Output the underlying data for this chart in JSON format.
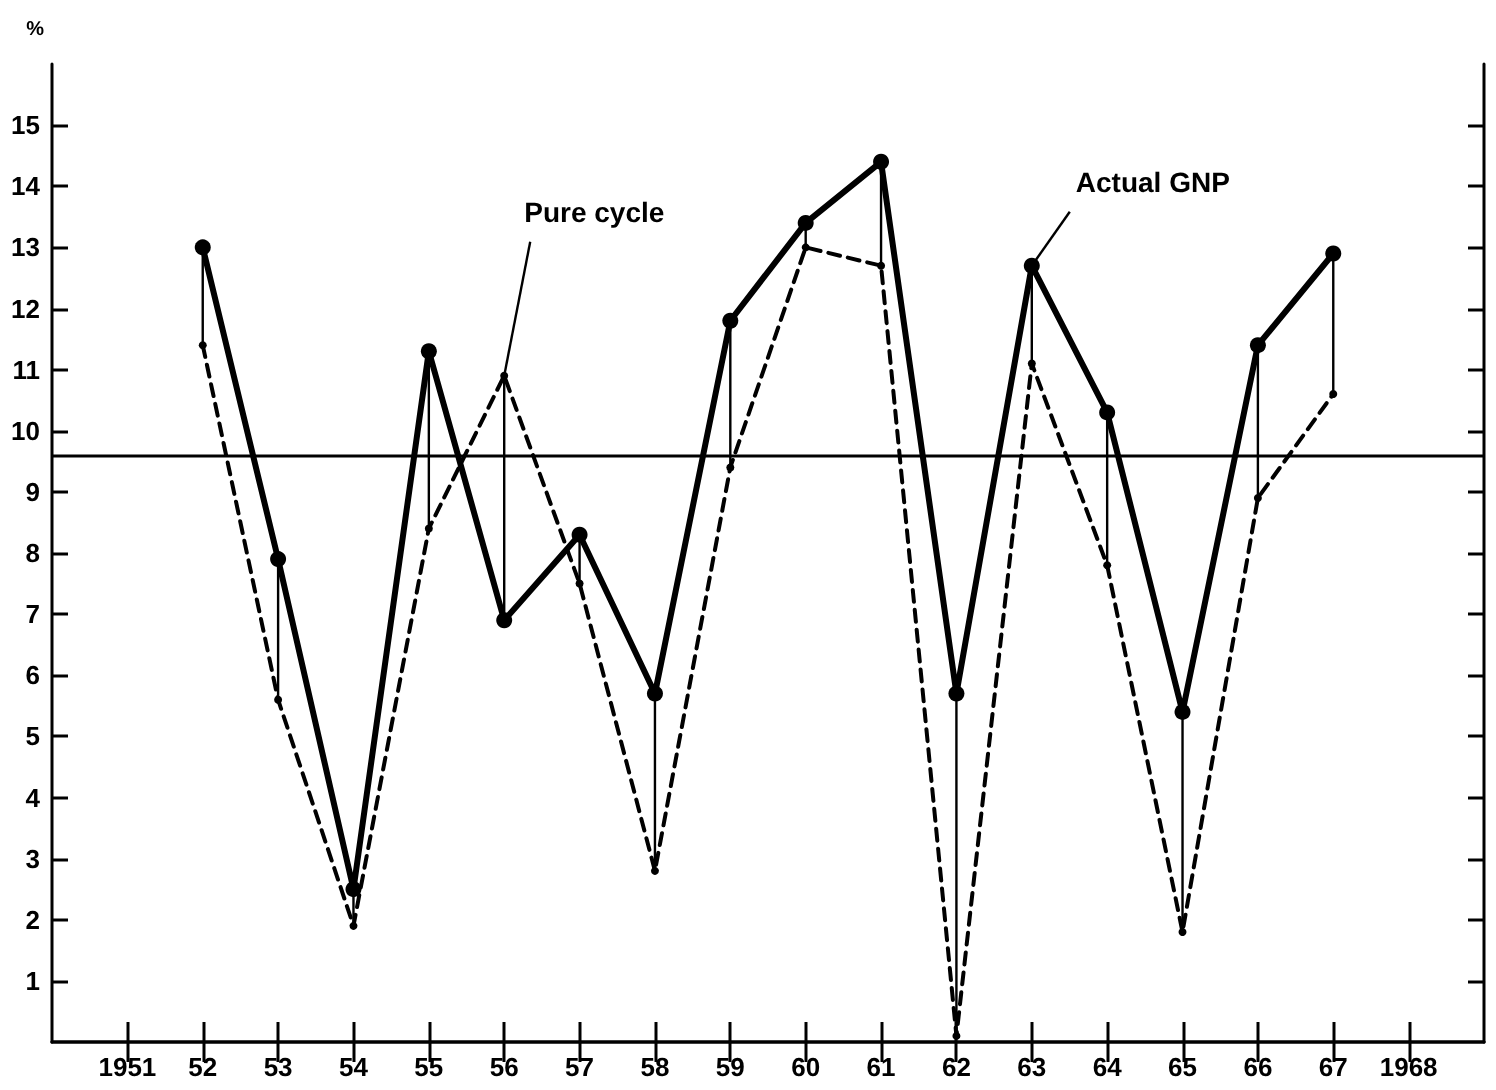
{
  "chart_data": {
    "type": "line",
    "ylabel": "%",
    "x": [
      1952,
      1953,
      1954,
      1955,
      1956,
      1957,
      1958,
      1959,
      1960,
      1961,
      1962,
      1963,
      1964,
      1965,
      1966,
      1967
    ],
    "xlim": [
      1950,
      1969
    ],
    "xticks": [
      {
        "value": 1951,
        "label": "1951"
      },
      {
        "value": 1952,
        "label": "52"
      },
      {
        "value": 1953,
        "label": "53"
      },
      {
        "value": 1954,
        "label": "54"
      },
      {
        "value": 1955,
        "label": "55"
      },
      {
        "value": 1956,
        "label": "56"
      },
      {
        "value": 1957,
        "label": "57"
      },
      {
        "value": 1958,
        "label": "58"
      },
      {
        "value": 1959,
        "label": "59"
      },
      {
        "value": 1960,
        "label": "60"
      },
      {
        "value": 1961,
        "label": "61"
      },
      {
        "value": 1962,
        "label": "62"
      },
      {
        "value": 1963,
        "label": "63"
      },
      {
        "value": 1964,
        "label": "64"
      },
      {
        "value": 1965,
        "label": "65"
      },
      {
        "value": 1966,
        "label": "66"
      },
      {
        "value": 1967,
        "label": "67"
      },
      {
        "value": 1968,
        "label": "1968"
      }
    ],
    "ylim": [
      0,
      16
    ],
    "yticks": [
      1,
      2,
      3,
      4,
      5,
      6,
      7,
      8,
      9,
      10,
      11,
      12,
      13,
      14,
      15
    ],
    "series": [
      {
        "color": "#000000",
        "line_style": "dashed",
        "marker": "circle",
        "values": [
          11.4,
          5.6,
          1.9,
          8.4,
          10.9,
          7.5,
          2.8,
          9.4,
          13.0,
          12.7,
          0.1,
          11.1,
          7.8,
          1.8,
          8.9,
          10.6
        ]
      },
      {
        "color": "#000000",
        "line_style": "solid",
        "marker": "circle",
        "values": [
          13.0,
          7.9,
          2.5,
          11.3,
          6.9,
          8.3,
          5.7,
          11.8,
          13.4,
          14.4,
          5.7,
          12.7,
          10.3,
          5.4,
          11.4,
          12.9
        ],
        "errors": [
          [
            11.4,
            13.0
          ],
          [
            5.6,
            7.9
          ],
          [
            1.9,
            2.5
          ],
          [
            8.4,
            11.3
          ],
          [
            6.9,
            10.9
          ],
          [
            7.5,
            8.3
          ],
          [
            2.8,
            5.7
          ],
          [
            9.4,
            11.8
          ],
          [
            13.0,
            13.4
          ],
          [
            12.7,
            14.4
          ],
          [
            0.1,
            5.7
          ],
          [
            11.1,
            12.7
          ],
          [
            7.8,
            10.3
          ],
          [
            1.8,
            5.4
          ],
          [
            8.9,
            11.4
          ],
          [
            10.6,
            12.9
          ]
        ]
      }
    ],
    "ref_lines": [
      {
        "axis": "y",
        "value": 9.6,
        "color": "#000000",
        "line_style": "solid"
      }
    ],
    "annotations": [
      {
        "text": "Pure cycle",
        "x": 1956,
        "y": 10.9
      },
      {
        "text": "Actual GNP",
        "x": 1963,
        "y": 12.7
      }
    ],
    "grid": false
  }
}
